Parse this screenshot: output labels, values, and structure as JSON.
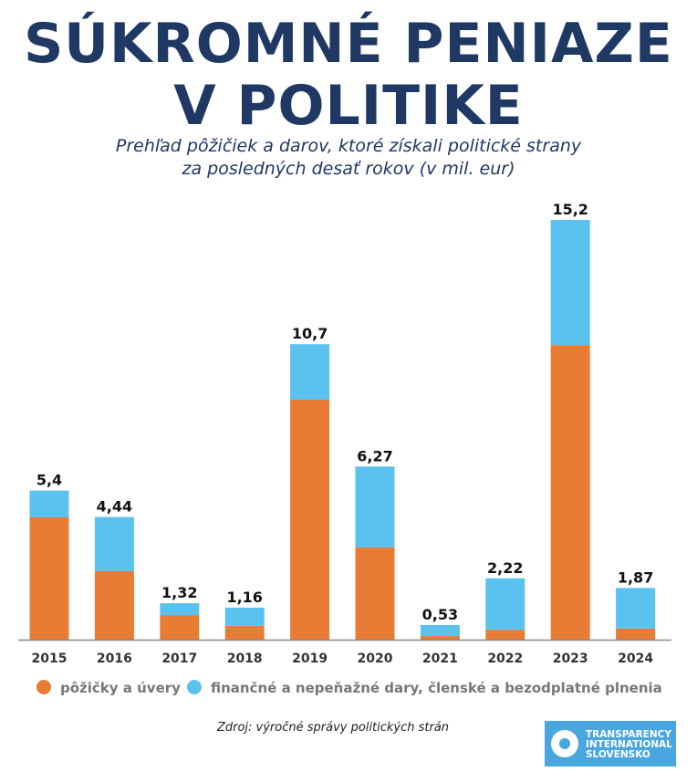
{
  "title_line1": "SÚKROMNÉ PENIAZE",
  "title_line2": "V POLITIKE",
  "subtitle_line1": "Prehľad pôžičiek a darov, ktoré získali politické strany",
  "subtitle_line2": "za posledných desať rokov (v mil. eur)",
  "source": "Zdroj: výročné správy politických strán",
  "logo": {
    "line1": "TRANSPARENCY",
    "line2": "INTERNATIONAL",
    "line3": "SLOVENSKO",
    "color": "#4aa6df"
  },
  "chart_data": {
    "type": "bar",
    "stacked": true,
    "categories": [
      "2015",
      "2016",
      "2017",
      "2018",
      "2019",
      "2020",
      "2021",
      "2022",
      "2023",
      "2024"
    ],
    "series": [
      {
        "name": "pôžičky a úvery",
        "color": "#e87c35",
        "values": [
          4.43,
          2.48,
          0.89,
          0.5,
          8.69,
          3.34,
          0.13,
          0.36,
          10.67,
          0.4
        ]
      },
      {
        "name": "finančné a nepeňažné dary, členské a bezodplatné plnenia",
        "color": "#5bc2ef",
        "values": [
          0.97,
          1.96,
          0.43,
          0.66,
          2.01,
          2.93,
          0.4,
          1.86,
          4.53,
          1.47
        ]
      }
    ],
    "totals": [
      5.4,
      4.44,
      1.32,
      1.16,
      10.7,
      6.27,
      0.53,
      2.22,
      15.2,
      1.87
    ],
    "total_labels": [
      "5,4",
      "4,44",
      "1,32",
      "1,16",
      "10,7",
      "6,27",
      "0,53",
      "2,22",
      "15,2",
      "1,87"
    ],
    "legend_position": "bottom",
    "grid": false
  }
}
